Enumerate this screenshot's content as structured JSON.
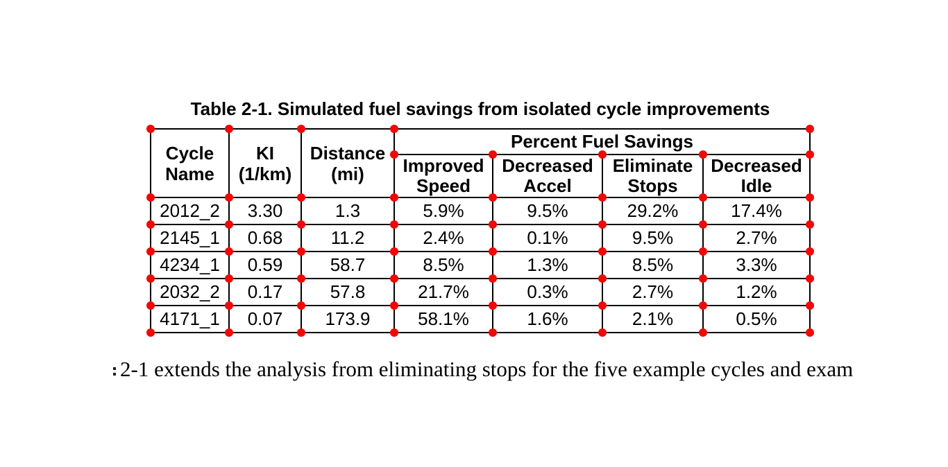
{
  "caption": "Table 2-1. Simulated fuel savings from isolated cycle improvements",
  "table": {
    "columns": [
      "Cycle\nName",
      "KI\n(1/km)",
      "Distance\n(mi)"
    ],
    "group_header": "Percent Fuel Savings",
    "sub_columns": [
      "Improved\nSpeed",
      "Decreased\nAccel",
      "Eliminate\nStops",
      "Decreased\nIdle"
    ],
    "rows": [
      [
        "2012_2",
        "3.30",
        "1.3",
        "5.9%",
        "9.5%",
        "29.2%",
        "17.4%"
      ],
      [
        "2145_1",
        "0.68",
        "11.2",
        "2.4%",
        "0.1%",
        "9.5%",
        "2.7%"
      ],
      [
        "4234_1",
        "0.59",
        "58.7",
        "8.5%",
        "1.3%",
        "8.5%",
        "3.3%"
      ],
      [
        "2032_2",
        "0.17",
        "57.8",
        "21.7%",
        "0.3%",
        "2.7%",
        "1.2%"
      ],
      [
        "4171_1",
        "0.07",
        "173.9",
        "58.1%",
        "1.6%",
        "2.1%",
        "0.5%"
      ]
    ]
  },
  "body_text": "2-1 extends the analysis from eliminating stops for the five example cycles and exam",
  "colors": {
    "marker": "#f40606",
    "border": "#000000",
    "text": "#000000",
    "background": "#ffffff"
  }
}
